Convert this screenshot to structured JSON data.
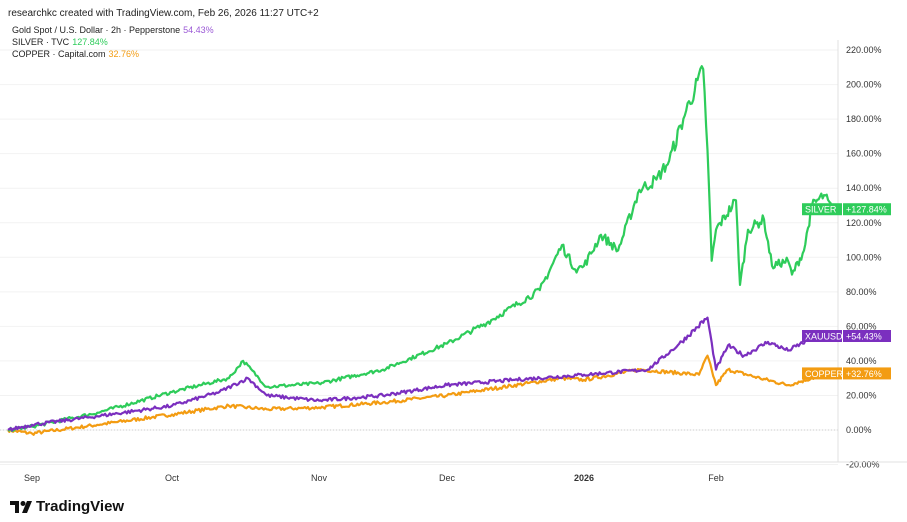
{
  "header": "researchkc created with TradingView.com, Feb 26, 2026 11:27 UTC+2",
  "legend": [
    {
      "label": "Gold Spot / U.S. Dollar · 2h · Pepperstone",
      "value": "54.43%",
      "color": "#7b2fbf"
    },
    {
      "label": "SILVER · TVC",
      "value": "127.84%",
      "color": "#2ecc5a"
    },
    {
      "label": "COPPER · Capital.com",
      "value": "32.76%",
      "color": "#f39c12"
    }
  ],
  "logo": "TradingView",
  "chart_data": {
    "type": "line",
    "x_unit": "days since 2025-08-26",
    "xlabel": "",
    "ylabel": "",
    "x_ticks": [
      {
        "day": 6,
        "label": "Sep"
      },
      {
        "day": 36,
        "label": "Oct"
      },
      {
        "day": 67,
        "label": "Nov"
      },
      {
        "day": 97,
        "label": "Dec"
      },
      {
        "day": 128,
        "label": "2026",
        "bold": true
      },
      {
        "day": 159,
        "label": "Feb"
      }
    ],
    "y_ticks": [
      "-20.00%",
      "0.00%",
      "20.00%",
      "40.00%",
      "60.00%",
      "80.00%",
      "100.00%",
      "120.00%",
      "140.00%",
      "160.00%",
      "180.00%",
      "200.00%",
      "220.00%"
    ],
    "y_tick_values": [
      -20,
      0,
      20,
      40,
      60,
      80,
      100,
      120,
      140,
      160,
      180,
      200,
      220
    ],
    "ylim": [
      -25,
      230
    ],
    "xlim": [
      0,
      196
    ],
    "series": [
      {
        "name": "SILVER",
        "tag_value": "+127.84%",
        "color": "#2ecc5a",
        "points": [
          [
            0,
            0
          ],
          [
            6,
            2
          ],
          [
            20,
            10
          ],
          [
            36,
            22
          ],
          [
            48,
            30
          ],
          [
            51,
            40
          ],
          [
            56,
            25
          ],
          [
            67,
            27
          ],
          [
            82,
            35
          ],
          [
            97,
            50
          ],
          [
            106,
            62
          ],
          [
            118,
            81
          ],
          [
            123,
            107
          ],
          [
            126,
            93
          ],
          [
            128,
            95
          ],
          [
            132,
            113
          ],
          [
            136,
            104
          ],
          [
            141,
            139
          ],
          [
            145,
            145
          ],
          [
            148,
            156
          ],
          [
            152,
            185
          ],
          [
            156,
            209
          ],
          [
            157,
            162
          ],
          [
            158,
            98
          ],
          [
            159,
            116
          ],
          [
            164,
            133
          ],
          [
            165,
            84
          ],
          [
            167,
            116
          ],
          [
            171,
            122
          ],
          [
            173,
            95
          ],
          [
            177,
            98
          ],
          [
            178,
            90
          ],
          [
            181,
            104
          ],
          [
            183,
            130
          ],
          [
            186,
            136
          ],
          [
            188,
            127.84
          ]
        ]
      },
      {
        "name": "XAUUSD",
        "tag_value": "+54.43%",
        "color": "#7b2fbf",
        "points": [
          [
            0,
            0
          ],
          [
            6,
            3
          ],
          [
            20,
            8
          ],
          [
            36,
            14
          ],
          [
            46,
            22
          ],
          [
            52,
            30
          ],
          [
            56,
            20
          ],
          [
            67,
            17
          ],
          [
            82,
            20
          ],
          [
            97,
            26
          ],
          [
            112,
            29
          ],
          [
            128,
            32
          ],
          [
            143,
            35
          ],
          [
            150,
            49
          ],
          [
            157,
            65
          ],
          [
            159,
            35
          ],
          [
            162,
            49
          ],
          [
            166,
            43
          ],
          [
            172,
            51
          ],
          [
            177,
            46
          ],
          [
            182,
            52
          ],
          [
            188,
            54.43
          ]
        ]
      },
      {
        "name": "COPPER",
        "tag_value": "+32.76%",
        "color": "#f39c12",
        "points": [
          [
            0,
            0
          ],
          [
            6,
            -2
          ],
          [
            20,
            3
          ],
          [
            36,
            9
          ],
          [
            48,
            14
          ],
          [
            56,
            12
          ],
          [
            67,
            13
          ],
          [
            82,
            16
          ],
          [
            97,
            20
          ],
          [
            123,
            30
          ],
          [
            128,
            29
          ],
          [
            141,
            35
          ],
          [
            155,
            32
          ],
          [
            157,
            43
          ],
          [
            159,
            26
          ],
          [
            162,
            35
          ],
          [
            170,
            30
          ],
          [
            177,
            26
          ],
          [
            183,
            30
          ],
          [
            188,
            32.76
          ]
        ]
      }
    ]
  }
}
